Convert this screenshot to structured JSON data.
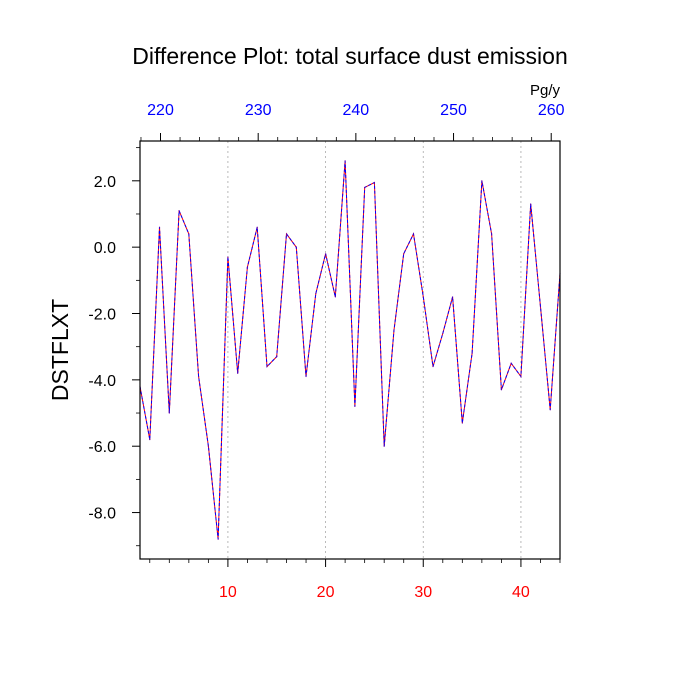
{
  "chart_data": {
    "type": "line",
    "title": "Difference Plot: total surface dust emission",
    "units": "Pg/y",
    "ylabel": "DSTFLXT",
    "xlabel": "",
    "xlim": [
      1,
      44
    ],
    "ylim": [
      -9.4,
      3.2
    ],
    "x_ticks": [
      10,
      20,
      30,
      40
    ],
    "x_tick_labels": [
      "10",
      "20",
      "30",
      "40"
    ],
    "y_ticks": [
      -8,
      -6,
      -4,
      -2,
      0,
      2
    ],
    "y_tick_labels": [
      "-8.0",
      "-6.0",
      "-4.0",
      "-2.0",
      "0.0",
      "2.0"
    ],
    "top_axis": {
      "ticks": [
        220,
        230,
        240,
        250,
        260
      ],
      "tick_labels": [
        "220",
        "230",
        "240",
        "250",
        "260"
      ],
      "x_at_tick": [
        3.1,
        13.1,
        23.1,
        33.1,
        43.1
      ]
    },
    "grid": "vertical dotted lines at bottom-axis major ticks",
    "line_colors": [
      "#ff0000",
      "#0000ff"
    ],
    "series": [
      {
        "x": [
          1,
          2,
          3,
          4,
          5,
          6,
          7,
          8,
          9,
          10,
          11,
          12,
          13,
          14,
          15,
          16,
          17,
          18,
          19,
          20,
          21,
          22,
          23,
          24,
          25,
          26,
          27,
          28,
          29,
          30,
          31,
          32,
          33,
          34,
          35,
          36,
          37,
          38,
          39,
          40,
          41,
          42,
          43,
          44
        ],
        "values": [
          -4.2,
          -5.8,
          0.6,
          -5.0,
          1.1,
          0.4,
          -3.9,
          -6.0,
          -8.8,
          -0.3,
          -3.8,
          -0.6,
          0.6,
          -3.6,
          -3.3,
          0.4,
          0.0,
          -3.9,
          -1.4,
          -0.2,
          -1.5,
          2.6,
          -4.8,
          1.8,
          1.95,
          -6.0,
          -2.5,
          -0.2,
          0.4,
          -1.5,
          -3.6,
          -2.6,
          -1.5,
          -5.3,
          -3.2,
          2.0,
          0.4,
          -4.3,
          -3.5,
          -3.9,
          1.3,
          -1.8,
          -4.9,
          -0.8
        ]
      }
    ]
  }
}
